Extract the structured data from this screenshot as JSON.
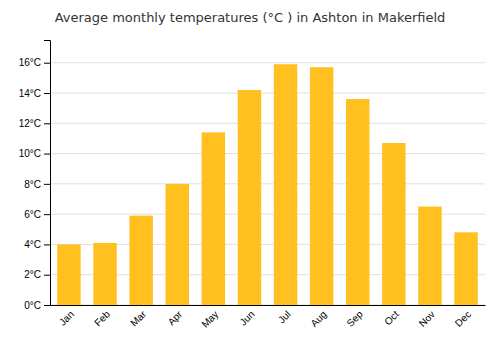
{
  "chart_data": {
    "type": "bar",
    "title": "Average monthly temperatures (°C ) in Ashton in Makerfield",
    "categories": [
      "Jan",
      "Feb",
      "Mar",
      "Apr",
      "May",
      "Jun",
      "Jul",
      "Aug",
      "Sep",
      "Oct",
      "Nov",
      "Dec"
    ],
    "values": [
      4.0,
      4.1,
      5.9,
      8.0,
      11.4,
      14.2,
      15.9,
      15.7,
      13.6,
      10.7,
      6.5,
      4.8
    ],
    "color": "#FFC020",
    "ylim": [
      0,
      17.5
    ],
    "yticks": [
      {
        "value": 0,
        "label": "0°C"
      },
      {
        "value": 2,
        "label": "2°C"
      },
      {
        "value": 4,
        "label": "4°C"
      },
      {
        "value": 6,
        "label": "6°C"
      },
      {
        "value": 8,
        "label": "8°C"
      },
      {
        "value": 10,
        "label": "10°C"
      },
      {
        "value": 12,
        "label": "12°C"
      },
      {
        "value": 14,
        "label": "14°C"
      },
      {
        "value": 16,
        "label": "16°C"
      }
    ],
    "grid": true
  }
}
